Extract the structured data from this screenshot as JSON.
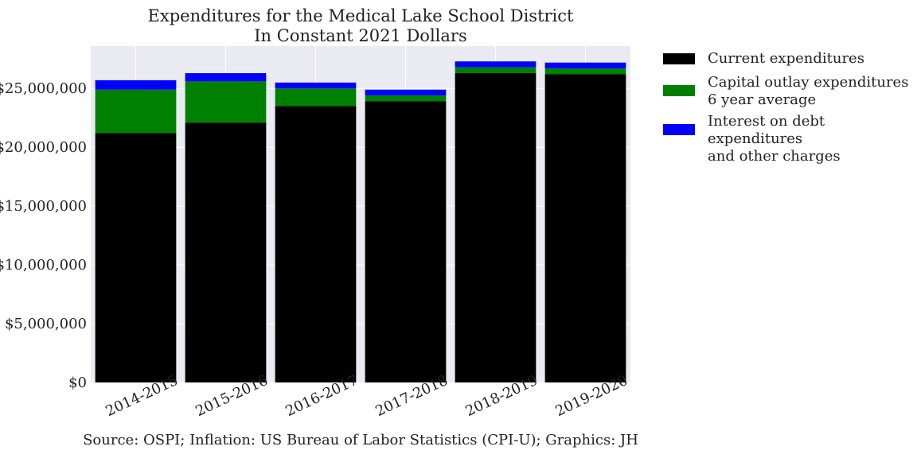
{
  "chart_data": {
    "type": "bar",
    "stacked": true,
    "title_lines": [
      "Expenditures for the Medical Lake School District",
      "In Constant 2021 Dollars"
    ],
    "categories": [
      "2014-2015",
      "2015-2016",
      "2016-2017",
      "2017-2018",
      "2018-2019",
      "2019-2020"
    ],
    "series": [
      {
        "name": "Current expenditures",
        "color": "#000000",
        "values": [
          21200000,
          22100000,
          23500000,
          23900000,
          26300000,
          26200000
        ]
      },
      {
        "name": "Capital outlay expenditures\n6 year average",
        "color": "#008000",
        "values": [
          3700000,
          3500000,
          1500000,
          500000,
          500000,
          500000
        ]
      },
      {
        "name": "Interest on debt expenditures\nand other charges",
        "color": "#0000ff",
        "values": [
          800000,
          700000,
          500000,
          500000,
          500000,
          500000
        ]
      }
    ],
    "yticks": [
      0,
      5000000,
      10000000,
      15000000,
      20000000,
      25000000
    ],
    "ytick_labels": [
      "$0",
      "$5,000,000",
      "$10,000,000",
      "$15,000,000",
      "$20,000,000",
      "$25,000,000"
    ],
    "ylim": [
      0,
      28600000
    ],
    "grid": true,
    "legend_position": "outside-right",
    "xlabel": "Source: OSPI; Inflation: US Bureau of Labor Statistics (CPI-U); Graphics: JH",
    "ylabel": ""
  },
  "colors": {
    "plot_background": "#eaeaf2",
    "grid": "#ffffff"
  }
}
